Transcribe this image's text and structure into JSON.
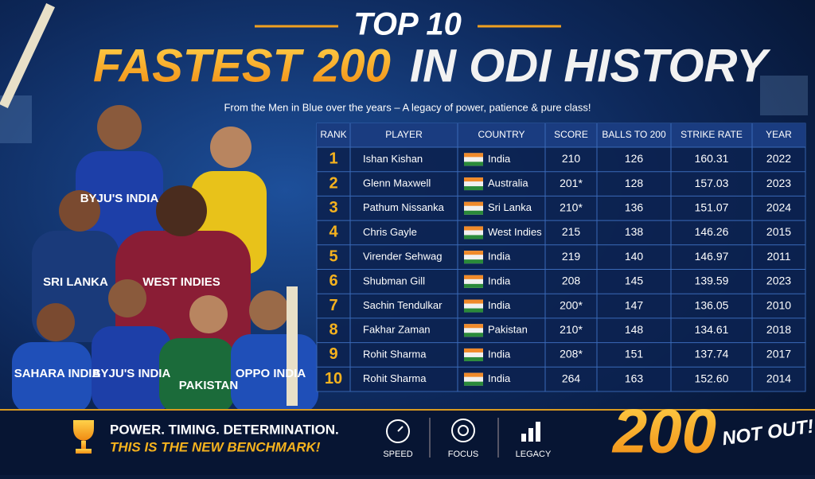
{
  "header": {
    "kicker": "TOP 10",
    "title_part1": "FASTEST 200",
    "title_part2": "IN ODI HISTORY",
    "subtitle": "From the Men in Blue over the years – A legacy of power, patience & pure class!"
  },
  "jerseys": [
    "BYJU'S INDIA",
    "SRI LANKA",
    "WEST INDIES",
    "SAHARA INDIA",
    "BYJU'S INDIA",
    "PAKISTAN",
    "OPPO INDIA"
  ],
  "table": {
    "header": [
      "RANK",
      "PLAYER",
      "COUNTRY",
      "SCORE",
      "BALLS TO 200",
      "STRIKE RATE",
      "YEAR"
    ],
    "rows": [
      [
        "1",
        "Ishan Kishan",
        "India",
        "210",
        "126",
        "160.31",
        "2022"
      ],
      [
        "2",
        "Glenn Maxwell",
        "Australia",
        "201*",
        "128",
        "157.03",
        "2023"
      ],
      [
        "3",
        "Pathum Nissanka",
        "Sri Lanka",
        "210*",
        "136",
        "151.07",
        "2024"
      ],
      [
        "4",
        "Chris Gayle",
        "West Indies",
        "215",
        "138",
        "146.26",
        "2015"
      ],
      [
        "5",
        "Virender Sehwag",
        "India",
        "219",
        "140",
        "146.97",
        "2011"
      ],
      [
        "6",
        "Shubman Gill",
        "India",
        "208",
        "145",
        "139.59",
        "2023"
      ],
      [
        "7",
        "Sachin Tendulkar",
        "India",
        "200*",
        "147",
        "136.05",
        "2010"
      ],
      [
        "8",
        "Fakhar Zaman",
        "Pakistan",
        "210*",
        "148",
        "134.61",
        "2018"
      ],
      [
        "9",
        "Rohit Sharma",
        "India",
        "208*",
        "151",
        "137.74",
        "2017"
      ],
      [
        "10",
        "Rohit Sharma",
        "India",
        "264",
        "163",
        "152.60",
        "2014"
      ]
    ]
  },
  "footer": {
    "tagline": "POWER. TIMING. DETERMINATION.",
    "benchmark": "THIS IS THE NEW BENCHMARK!",
    "icons": [
      "SPEED",
      "FOCUS",
      "LEGACY"
    ],
    "big_number": "200",
    "not_out": "NOT OUT!"
  }
}
